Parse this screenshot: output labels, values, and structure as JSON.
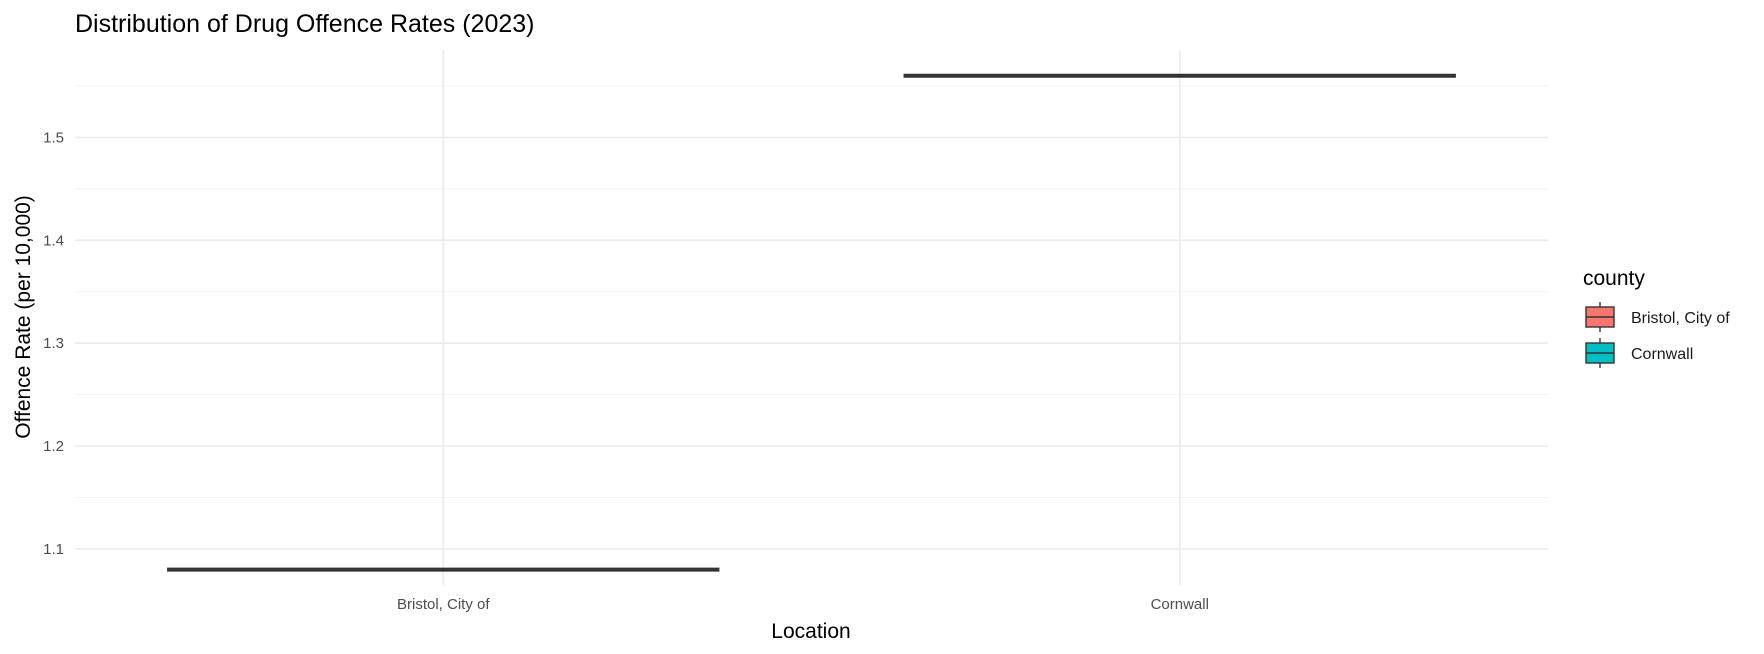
{
  "chart_data": {
    "type": "boxplot",
    "title": "Distribution of Drug Offence Rates (2023)",
    "xlabel": "Location",
    "ylabel": "Offence Rate (per 10,000)",
    "categories": [
      "Bristol, City of",
      "Cornwall"
    ],
    "values": [
      1.08,
      1.56
    ],
    "ylim": [
      1.065,
      1.585
    ],
    "yticks": [
      1.1,
      1.2,
      1.3,
      1.4,
      1.5
    ],
    "ytick_labels": [
      "1.1",
      "1.2",
      "1.3",
      "1.4",
      "1.5"
    ],
    "grid": true,
    "legend": {
      "title": "county",
      "position": "right",
      "entries": [
        {
          "label": "Bristol, City of",
          "color": "#F8766D"
        },
        {
          "label": "Cornwall",
          "color": "#00BFC4"
        }
      ]
    }
  }
}
